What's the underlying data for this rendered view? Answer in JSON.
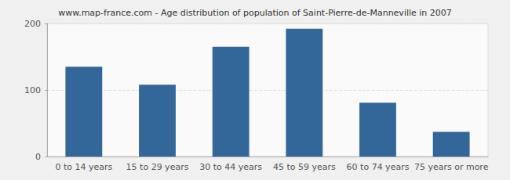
{
  "chart_data": {
    "type": "bar",
    "title": "www.map-france.com - Age distribution of population of Saint-Pierre-de-Manneville in 2007",
    "categories": [
      "0 to 14 years",
      "15 to 29 years",
      "30 to 44 years",
      "45 to 59 years",
      "60 to 74 years",
      "75 years or more"
    ],
    "values": [
      135,
      108,
      165,
      192,
      81,
      37
    ],
    "color": "#336699",
    "ylim": [
      0,
      200
    ],
    "yticks": [
      0,
      100,
      200
    ],
    "grid": true
  }
}
